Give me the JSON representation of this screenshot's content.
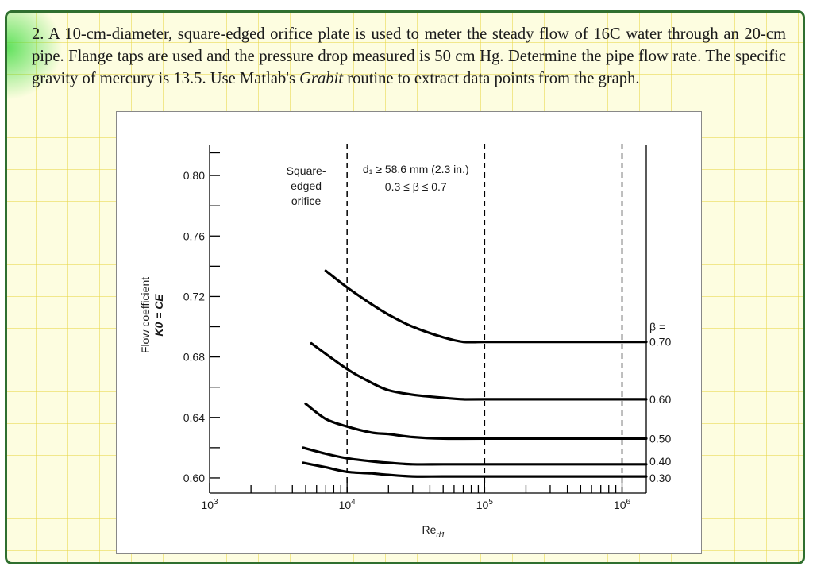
{
  "problem": {
    "text": "2. A 10-cm-diameter, square-edged orifice plate is used to meter the steady flow of 16C water through an 20-cm pipe.  Flange taps are used and the pressure drop measured is 50 cm Hg. Determine the pipe flow rate.  The specific gravity of mercury is 13.5.  Use Matlab's ",
    "italic_word": "Grabit",
    "tail_text": " routine to extract data points from the graph."
  },
  "chart_data": {
    "type": "line",
    "title": "",
    "xlabel": "Re",
    "xlabel_sub": "d1",
    "ylabel_line1": "Flow coefficient",
    "ylabel_line2": "K0 = CE",
    "x_scale": "log",
    "xlim": [
      1000,
      1500000
    ],
    "ylim": [
      0.59,
      0.82
    ],
    "grid": false,
    "x_ticks": [
      1000,
      10000,
      100000,
      1000000
    ],
    "x_tick_labels": [
      {
        "base": "10",
        "exp": "3"
      },
      {
        "base": "10",
        "exp": "4"
      },
      {
        "base": "10",
        "exp": "5"
      },
      {
        "base": "10",
        "exp": "6"
      }
    ],
    "y_ticks": [
      0.6,
      0.64,
      0.68,
      0.72,
      0.76,
      0.8
    ],
    "y_tick_labels": [
      "0.60",
      "0.64",
      "0.68",
      "0.72",
      "0.76",
      "0.80"
    ],
    "dashed_verticals": [
      10000,
      100000,
      1000000
    ],
    "annotations": {
      "orifice_lines": [
        "Square-",
        "edged",
        "orifice"
      ],
      "range_line1": "d₁ ≥ 58.6 mm (2.3 in.)",
      "range_line2": "0.3 ≤ β ≤ 0.7",
      "beta_header": "β ="
    },
    "series": [
      {
        "name": "0.70",
        "x": [
          7000,
          10000,
          15000,
          20000,
          30000,
          50000,
          70000,
          100000,
          200000,
          1500000
        ],
        "y": [
          0.737,
          0.726,
          0.715,
          0.708,
          0.7,
          0.693,
          0.69,
          0.69,
          0.69,
          0.69
        ]
      },
      {
        "name": "0.60",
        "x": [
          5500,
          10000,
          15000,
          20000,
          30000,
          50000,
          70000,
          100000,
          1500000
        ],
        "y": [
          0.689,
          0.672,
          0.663,
          0.658,
          0.655,
          0.653,
          0.652,
          0.652,
          0.652
        ]
      },
      {
        "name": "0.50",
        "x": [
          5000,
          7000,
          10000,
          15000,
          20000,
          30000,
          50000,
          100000,
          1500000
        ],
        "y": [
          0.649,
          0.639,
          0.634,
          0.63,
          0.629,
          0.627,
          0.626,
          0.626,
          0.626
        ]
      },
      {
        "name": "0.40",
        "x": [
          4800,
          7000,
          10000,
          15000,
          20000,
          30000,
          50000,
          100000,
          1500000
        ],
        "y": [
          0.62,
          0.616,
          0.613,
          0.611,
          0.61,
          0.609,
          0.609,
          0.609,
          0.609
        ]
      },
      {
        "name": "0.30",
        "x": [
          4800,
          7000,
          10000,
          15000,
          20000,
          30000,
          50000,
          100000,
          1500000
        ],
        "y": [
          0.61,
          0.607,
          0.604,
          0.603,
          0.602,
          0.601,
          0.601,
          0.601,
          0.601
        ]
      }
    ]
  }
}
